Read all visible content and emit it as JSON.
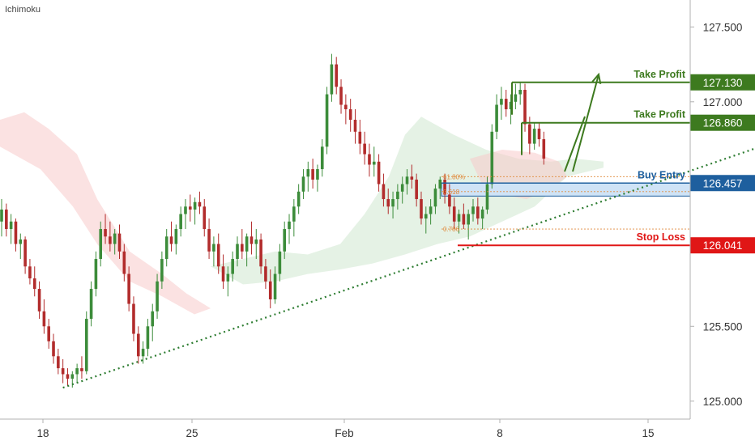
{
  "indicator_label": "Ichimoku",
  "colors": {
    "bull": "#3c8c3a",
    "bear": "#b22c2c",
    "take_profit": "#3d7a1f",
    "buy_entry": "#1e5f9e",
    "stop_loss": "#e01616",
    "trendline": "#2e7d32",
    "cloud_bull": "#cfe8cf",
    "cloud_bear": "#f7caca",
    "zone_fill": "#cfe3f6",
    "fib_line": "#e08a3c"
  },
  "chart_data": {
    "type": "candlestick",
    "x_ticks": [
      "18",
      "25",
      "Feb",
      "8",
      "15"
    ],
    "y_ticks": [
      "125.000",
      "125.500",
      "127.000",
      "127.500"
    ],
    "ylim": [
      124.88,
      127.68
    ],
    "levels": [
      {
        "label": "Take Profit",
        "value": 127.13,
        "value_label": "127.130",
        "kind": "take_profit"
      },
      {
        "label": "Take Profit",
        "value": 126.86,
        "value_label": "126.860",
        "kind": "take_profit"
      },
      {
        "label": "Buy Entry",
        "value": 126.457,
        "value_label": "126.457",
        "kind": "buy_entry"
      },
      {
        "label": "Stop Loss",
        "value": 126.041,
        "value_label": "126.041",
        "kind": "stop_loss"
      }
    ],
    "fib_labels": [
      "61.80%",
      "0.618",
      "0.786"
    ],
    "trendline": [
      [
        0,
        125.09
      ],
      [
        164,
        126.73
      ]
    ],
    "candles": [
      [
        126.2,
        126.35,
        126.1,
        126.28
      ],
      [
        126.28,
        126.32,
        126.1,
        126.15
      ],
      [
        126.15,
        126.25,
        126.05,
        126.2
      ],
      [
        126.2,
        126.22,
        126.0,
        126.05
      ],
      [
        126.05,
        126.12,
        125.95,
        126.08
      ],
      [
        126.08,
        126.1,
        125.85,
        125.9
      ],
      [
        125.9,
        125.95,
        125.78,
        125.82
      ],
      [
        125.82,
        125.9,
        125.7,
        125.75
      ],
      [
        125.75,
        125.8,
        125.55,
        125.6
      ],
      [
        125.6,
        125.68,
        125.45,
        125.5
      ],
      [
        125.5,
        125.55,
        125.35,
        125.4
      ],
      [
        125.4,
        125.45,
        125.25,
        125.3
      ],
      [
        125.3,
        125.35,
        125.18,
        125.22
      ],
      [
        125.22,
        125.28,
        125.12,
        125.18
      ],
      [
        125.18,
        125.22,
        125.1,
        125.15
      ],
      [
        125.15,
        125.2,
        125.09,
        125.18
      ],
      [
        125.18,
        125.25,
        125.12,
        125.22
      ],
      [
        125.22,
        125.3,
        125.15,
        125.2
      ],
      [
        125.2,
        125.6,
        125.18,
        125.55
      ],
      [
        125.55,
        125.8,
        125.5,
        125.75
      ],
      [
        125.75,
        126.0,
        125.7,
        125.95
      ],
      [
        125.95,
        126.2,
        125.9,
        126.15
      ],
      [
        126.15,
        126.25,
        126.05,
        126.1
      ],
      [
        126.1,
        126.2,
        126.0,
        126.05
      ],
      [
        126.05,
        126.15,
        125.98,
        126.12
      ],
      [
        126.12,
        126.18,
        125.95,
        126.0
      ],
      [
        126.0,
        126.05,
        125.8,
        125.85
      ],
      [
        125.85,
        125.9,
        125.6,
        125.65
      ],
      [
        125.65,
        125.7,
        125.4,
        125.45
      ],
      [
        125.45,
        125.5,
        125.25,
        125.3
      ],
      [
        125.3,
        125.4,
        125.25,
        125.35
      ],
      [
        125.35,
        125.55,
        125.3,
        125.5
      ],
      [
        125.5,
        125.65,
        125.4,
        125.6
      ],
      [
        125.6,
        125.85,
        125.55,
        125.8
      ],
      [
        125.8,
        126.0,
        125.75,
        125.95
      ],
      [
        125.95,
        126.15,
        125.9,
        126.1
      ],
      [
        126.1,
        126.2,
        126.0,
        126.05
      ],
      [
        126.05,
        126.18,
        125.98,
        126.15
      ],
      [
        126.15,
        126.3,
        126.1,
        126.25
      ],
      [
        126.25,
        126.35,
        126.15,
        126.3
      ],
      [
        126.3,
        126.38,
        126.2,
        126.28
      ],
      [
        126.28,
        126.36,
        126.18,
        126.33
      ],
      [
        126.33,
        126.4,
        126.25,
        126.3
      ],
      [
        126.3,
        126.35,
        126.1,
        126.15
      ],
      [
        126.15,
        126.22,
        125.95,
        126.0
      ],
      [
        126.0,
        126.1,
        125.9,
        126.05
      ],
      [
        126.05,
        126.12,
        125.85,
        125.9
      ],
      [
        125.9,
        125.98,
        125.75,
        125.8
      ],
      [
        125.8,
        125.9,
        125.7,
        125.85
      ],
      [
        125.85,
        126.0,
        125.8,
        125.95
      ],
      [
        125.95,
        126.1,
        125.9,
        126.05
      ],
      [
        126.05,
        126.15,
        125.95,
        126.0
      ],
      [
        126.0,
        126.12,
        125.9,
        126.1
      ],
      [
        126.1,
        126.2,
        125.98,
        126.05
      ],
      [
        126.05,
        126.15,
        125.95,
        126.08
      ],
      [
        126.08,
        126.12,
        125.85,
        125.9
      ],
      [
        125.9,
        125.95,
        125.75,
        125.8
      ],
      [
        125.8,
        125.88,
        125.62,
        125.68
      ],
      [
        125.68,
        125.9,
        125.65,
        125.85
      ],
      [
        125.85,
        126.05,
        125.8,
        126.0
      ],
      [
        126.0,
        126.2,
        125.95,
        126.15
      ],
      [
        126.15,
        126.25,
        126.05,
        126.2
      ],
      [
        126.2,
        126.35,
        126.1,
        126.3
      ],
      [
        126.3,
        126.45,
        126.25,
        126.4
      ],
      [
        126.4,
        126.55,
        126.35,
        126.5
      ],
      [
        126.5,
        126.6,
        126.4,
        126.55
      ],
      [
        126.55,
        126.62,
        126.42,
        126.48
      ],
      [
        126.48,
        126.58,
        126.4,
        126.55
      ],
      [
        126.55,
        126.75,
        126.5,
        126.7
      ],
      [
        126.7,
        127.1,
        126.65,
        127.05
      ],
      [
        127.05,
        127.32,
        127.0,
        127.25
      ],
      [
        127.25,
        127.3,
        127.05,
        127.1
      ],
      [
        127.1,
        127.15,
        126.92,
        126.98
      ],
      [
        126.98,
        127.05,
        126.85,
        126.95
      ],
      [
        126.95,
        127.02,
        126.8,
        126.88
      ],
      [
        126.88,
        126.95,
        126.72,
        126.8
      ],
      [
        126.8,
        126.88,
        126.65,
        126.72
      ],
      [
        126.72,
        126.8,
        126.58,
        126.65
      ],
      [
        126.65,
        126.72,
        126.5,
        126.58
      ],
      [
        126.58,
        126.7,
        126.5,
        126.6
      ],
      [
        126.6,
        126.65,
        126.4,
        126.45
      ],
      [
        126.45,
        126.52,
        126.3,
        126.35
      ],
      [
        126.35,
        126.42,
        126.25,
        126.3
      ],
      [
        126.3,
        126.4,
        126.22,
        126.35
      ],
      [
        126.35,
        126.45,
        126.28,
        126.4
      ],
      [
        126.4,
        126.5,
        126.32,
        126.45
      ],
      [
        126.45,
        126.55,
        126.38,
        126.5
      ],
      [
        126.5,
        126.58,
        126.42,
        126.48
      ],
      [
        126.48,
        126.52,
        126.3,
        126.35
      ],
      [
        126.35,
        126.4,
        126.18,
        126.22
      ],
      [
        126.22,
        126.3,
        126.12,
        126.25
      ],
      [
        126.25,
        126.35,
        126.18,
        126.3
      ],
      [
        126.3,
        126.45,
        126.25,
        126.42
      ],
      [
        126.42,
        126.5,
        126.35,
        126.48
      ],
      [
        126.48,
        126.52,
        126.32,
        126.38
      ],
      [
        126.38,
        126.45,
        126.25,
        126.3
      ],
      [
        126.3,
        126.36,
        126.15,
        126.2
      ],
      [
        126.2,
        126.28,
        126.12,
        126.25
      ],
      [
        126.25,
        126.32,
        126.15,
        126.18
      ],
      [
        126.18,
        126.28,
        126.08,
        126.25
      ],
      [
        126.25,
        126.35,
        126.2,
        126.3
      ],
      [
        126.3,
        126.36,
        126.18,
        126.22
      ],
      [
        126.22,
        126.3,
        126.15,
        126.28
      ],
      [
        126.28,
        126.5,
        126.25,
        126.45
      ],
      [
        126.45,
        126.85,
        126.42,
        126.8
      ],
      [
        126.8,
        127.05,
        126.75,
        126.98
      ],
      [
        126.98,
        127.1,
        126.88,
        127.02
      ],
      [
        127.02,
        127.08,
        126.9,
        126.95
      ],
      [
        126.95,
        127.05,
        126.85,
        127.0
      ],
      [
        127.0,
        127.12,
        126.95,
        127.05
      ],
      [
        127.05,
        127.13,
        126.98,
        127.08
      ],
      [
        127.08,
        127.12,
        126.8,
        126.85
      ],
      [
        126.85,
        126.9,
        126.65,
        126.72
      ],
      [
        126.72,
        126.86,
        126.68,
        126.82
      ],
      [
        126.82,
        126.86,
        126.7,
        126.75
      ],
      [
        126.75,
        126.8,
        126.58,
        126.62
      ]
    ]
  }
}
